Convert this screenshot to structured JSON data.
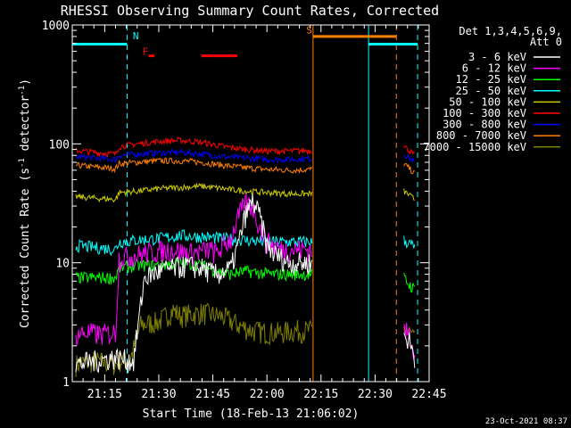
{
  "chart_data": {
    "type": "line",
    "title": "RHESSI Observing Summary Count Rates, Corrected",
    "xlabel": "Start Time (18-Feb-13 21:06:02)",
    "ylabel_main": "Corrected Count Rate (s",
    "ylabel_sup1": "-1",
    "ylabel_mid": " detector",
    "ylabel_sup2": "-1",
    "ylabel_end": ")",
    "y_scale": "log",
    "ylim": [
      1,
      1000
    ],
    "xlim_min": [
      0,
      99
    ],
    "x_ticks": [
      {
        "min": 9,
        "label": "21:15"
      },
      {
        "min": 24,
        "label": "21:30"
      },
      {
        "min": 39,
        "label": "21:45"
      },
      {
        "min": 54,
        "label": "22:00"
      },
      {
        "min": 69,
        "label": "22:15"
      },
      {
        "min": 84,
        "label": "22:30"
      },
      {
        "min": 99,
        "label": "22:45"
      }
    ],
    "y_ticks": [
      {
        "value": 1,
        "label": "1"
      },
      {
        "value": 10,
        "label": "10"
      },
      {
        "value": 100,
        "label": "100"
      },
      {
        "value": 1000,
        "label": "1000"
      }
    ],
    "legend_header_1": "Det 1,3,4,5,6,9,",
    "legend_header_2": "Att 0",
    "timestamp": "23-Oct-2021 08:37",
    "series": [
      {
        "name": "3 - 6 keV",
        "color": "#ffffff",
        "x": [
          1,
          6,
          12,
          16,
          17,
          20,
          24,
          28,
          32,
          36,
          40,
          42,
          44,
          46,
          48,
          50,
          52,
          54,
          56,
          58,
          60,
          66.5
        ],
        "y": [
          1.4,
          1.5,
          1.6,
          1.5,
          1.5,
          7.5,
          8.5,
          9,
          9.5,
          9,
          8,
          8.5,
          9,
          14,
          25,
          33,
          25,
          14,
          12,
          11,
          10,
          10
        ]
      },
      {
        "name": "6 - 12 keV",
        "color": "#ff00ff",
        "x": [
          1,
          4,
          8,
          12,
          13,
          17,
          20,
          24,
          28,
          32,
          36,
          38,
          40,
          42,
          44,
          46,
          48,
          50,
          52,
          54,
          56,
          58,
          62,
          66.5
        ],
        "y": [
          2.5,
          2.6,
          2.5,
          2.6,
          11,
          11.5,
          12,
          12.5,
          13,
          12,
          12.5,
          13,
          12,
          14,
          16,
          24,
          32,
          30,
          20,
          15,
          14,
          13,
          13,
          13
        ]
      },
      {
        "name": "12 - 25 keV",
        "color": "#00ff00",
        "x": [
          1,
          6,
          12,
          13,
          18,
          24,
          30,
          36,
          40,
          44,
          48,
          52,
          56,
          60,
          66.5
        ],
        "y": [
          7.5,
          7.5,
          7.5,
          9,
          9.5,
          9.5,
          10,
          9.5,
          8.5,
          8,
          8.5,
          8.2,
          8,
          8,
          8
        ]
      },
      {
        "name": "25 - 50 keV",
        "color": "#00ffff",
        "x": [
          1,
          6,
          12,
          13,
          18,
          24,
          30,
          36,
          42,
          48,
          54,
          60,
          66.5
        ],
        "y": [
          14,
          13.5,
          13,
          15,
          15.5,
          16,
          17,
          16.5,
          16,
          15.5,
          15,
          15,
          15
        ]
      },
      {
        "name": "50 - 100 keV",
        "color": "#cccc00",
        "x": [
          1,
          6,
          12,
          13,
          18,
          24,
          30,
          36,
          42,
          48,
          54,
          60,
          66.5
        ],
        "y": [
          36,
          35,
          34,
          39,
          40,
          42,
          43,
          44,
          42,
          40,
          39,
          38,
          38
        ]
      },
      {
        "name": "100 - 300 keV",
        "color": "#ff0000",
        "x": [
          1,
          6,
          12,
          13,
          18,
          24,
          30,
          36,
          42,
          48,
          54,
          60,
          66.5
        ],
        "y": [
          88,
          85,
          82,
          95,
          100,
          105,
          107,
          103,
          95,
          90,
          87,
          87,
          88
        ]
      },
      {
        "name": "300 - 800 keV",
        "color": "#0000ff",
        "x": [
          1,
          6,
          12,
          13,
          18,
          24,
          30,
          36,
          42,
          48,
          54,
          60,
          66.5
        ],
        "y": [
          78,
          76,
          74,
          80,
          82,
          84,
          85,
          82,
          78,
          76,
          74,
          74,
          75
        ]
      },
      {
        "name": "800 - 7000 keV",
        "color": "#ff8000",
        "x": [
          1,
          6,
          12,
          13,
          18,
          24,
          30,
          36,
          42,
          48,
          54,
          60,
          66.5
        ],
        "y": [
          66,
          64,
          62,
          68,
          70,
          72,
          72,
          70,
          66,
          63,
          61,
          60,
          61
        ]
      },
      {
        "name": "7000 - 15000 keV",
        "color": "#808000",
        "x": [
          1,
          6,
          12,
          13,
          16,
          19,
          24,
          28,
          30,
          36,
          42,
          46,
          50,
          54,
          58,
          62,
          66.5
        ],
        "y": [
          1.4,
          1.5,
          1.4,
          1.5,
          1.5,
          3,
          3.2,
          4,
          3.6,
          3.8,
          3.5,
          3,
          2.7,
          2.6,
          2.6,
          2.7,
          2.7
        ]
      }
    ],
    "late_series_x": [
      92,
      93.5,
      95
    ],
    "late_values": {
      "100 - 300 keV": [
        96,
        88,
        80
      ],
      "300 - 800 keV": [
        82,
        76,
        70
      ],
      "800 - 7000 keV": [
        68,
        62,
        56
      ],
      "50 - 100 keV": [
        40,
        37,
        34
      ],
      "25 - 50 keV": [
        15.5,
        14.5,
        13.5
      ],
      "12 - 25 keV": [
        7.5,
        6.5,
        6
      ],
      "3 - 6 keV": [
        2.5,
        2.2,
        1.6
      ],
      "6 - 12 keV": [
        2.7,
        2.5,
        1.8
      ],
      "7000 - 15000 keV": [
        2.8,
        2.6,
        2.2
      ]
    },
    "vertical_lines": [
      {
        "min": 15.2,
        "color": "#00ffff",
        "style": "dashed"
      },
      {
        "min": 66.8,
        "color": "#ff8000",
        "style": "solid"
      },
      {
        "min": 82.2,
        "color": "#00ffff",
        "style": "solid"
      },
      {
        "min": 89.9,
        "color": "#ff8000",
        "style": "dashed"
      },
      {
        "min": 95.8,
        "color": "#00ffff",
        "style": "dashed"
      }
    ],
    "flag_bars": [
      {
        "label": "N",
        "color": "#00ffff",
        "x_start": 0,
        "x_end": 15.2,
        "y": 690
      },
      {
        "label": "N",
        "color": "#00ffff",
        "x_start": 82.2,
        "x_end": 95.8,
        "y": 690
      },
      {
        "label": "S",
        "color": "#ff8000",
        "x_start": 66.8,
        "x_end": 89.9,
        "y": 800
      },
      {
        "label": "F",
        "color": "#ff0000",
        "x_start": 21.2,
        "x_end": 22.8,
        "y": 550
      },
      {
        "label": "F",
        "color": "#ff0000",
        "x_start": 35.8,
        "x_end": 45.8,
        "y": 550
      }
    ],
    "flag_labels": [
      {
        "text": "N",
        "color": "#00ffff",
        "min": 16.8,
        "value": 760
      },
      {
        "text": "F",
        "color": "#ff0000",
        "min": 19.5,
        "value": 560
      },
      {
        "text": "S",
        "color": "#ff8000",
        "min": 64.9,
        "value": 850
      }
    ]
  }
}
